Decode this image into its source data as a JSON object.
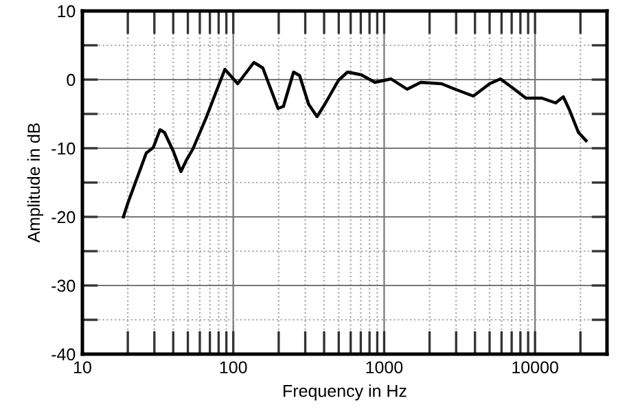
{
  "chart_data": {
    "type": "line",
    "xlabel": "Frequency in Hz",
    "ylabel": "Amplitude in dB",
    "log": "x",
    "grid": true,
    "legend": false,
    "marker": "none",
    "line_style": "solid",
    "xlim": [
      10,
      30000
    ],
    "ylim": [
      -40,
      10
    ],
    "xticks": [
      10,
      {
        "value": 20,
        "label": null
      },
      {
        "value": 30,
        "label": null
      },
      {
        "value": 40,
        "label": null
      },
      {
        "value": 50,
        "label": null
      },
      {
        "value": 60,
        "label": null
      },
      {
        "value": 70,
        "label": null
      },
      {
        "value": 80,
        "label": null
      },
      {
        "value": 90,
        "label": null
      },
      100,
      {
        "value": 200,
        "label": null
      },
      {
        "value": 300,
        "label": null
      },
      {
        "value": 400,
        "label": null
      },
      {
        "value": 500,
        "label": null
      },
      {
        "value": 600,
        "label": null
      },
      {
        "value": 700,
        "label": null
      },
      {
        "value": 800,
        "label": null
      },
      {
        "value": 900,
        "label": null
      },
      1000,
      {
        "value": 2000,
        "label": null
      },
      {
        "value": 3000,
        "label": null
      },
      {
        "value": 4000,
        "label": null
      },
      {
        "value": 5000,
        "label": null
      },
      {
        "value": 6000,
        "label": null
      },
      {
        "value": 7000,
        "label": null
      },
      {
        "value": 8000,
        "label": null
      },
      {
        "value": 9000,
        "label": null
      },
      10000,
      {
        "value": 20000,
        "label": null
      }
    ],
    "yticks": [
      -40,
      {
        "value": -35,
        "label": null
      },
      -30,
      {
        "value": -25,
        "label": null
      },
      -20,
      {
        "value": -15,
        "label": null
      },
      -10,
      {
        "value": -5,
        "label": null
      },
      0,
      {
        "value": 5,
        "label": null
      },
      10
    ],
    "series": [
      {
        "color": "#000000",
        "x": [
          18.7,
          20,
          26.5,
          29.5,
          32.7,
          35,
          40,
          45,
          49,
          54,
          66,
          76,
          88,
          107,
          137,
          157,
          198,
          215,
          251,
          275,
          316,
          359,
          404,
          498,
          572,
          705,
          869,
          1110,
          1420,
          1750,
          2400,
          2950,
          3900,
          5000,
          5900,
          7000,
          8700,
          11100,
          13700,
          15400,
          16900,
          19400,
          21800
        ],
        "values": [
          -20,
          -18,
          -10.7,
          -9.9,
          -7.3,
          -7.7,
          -10.4,
          -13.4,
          -11.7,
          -10.1,
          -5.6,
          -2.1,
          1.5,
          -0.6,
          2.5,
          1.7,
          -4.2,
          -3.9,
          1.1,
          0.6,
          -3.6,
          -5.4,
          -3.6,
          -0.1,
          1.1,
          0.7,
          -0.4,
          0.1,
          -1.4,
          -0.4,
          -0.6,
          -1.4,
          -2.4,
          -0.6,
          0.1,
          -1.1,
          -2.7,
          -2.7,
          -3.4,
          -2.5,
          -4.4,
          -7.7,
          -8.9
        ]
      }
    ]
  }
}
